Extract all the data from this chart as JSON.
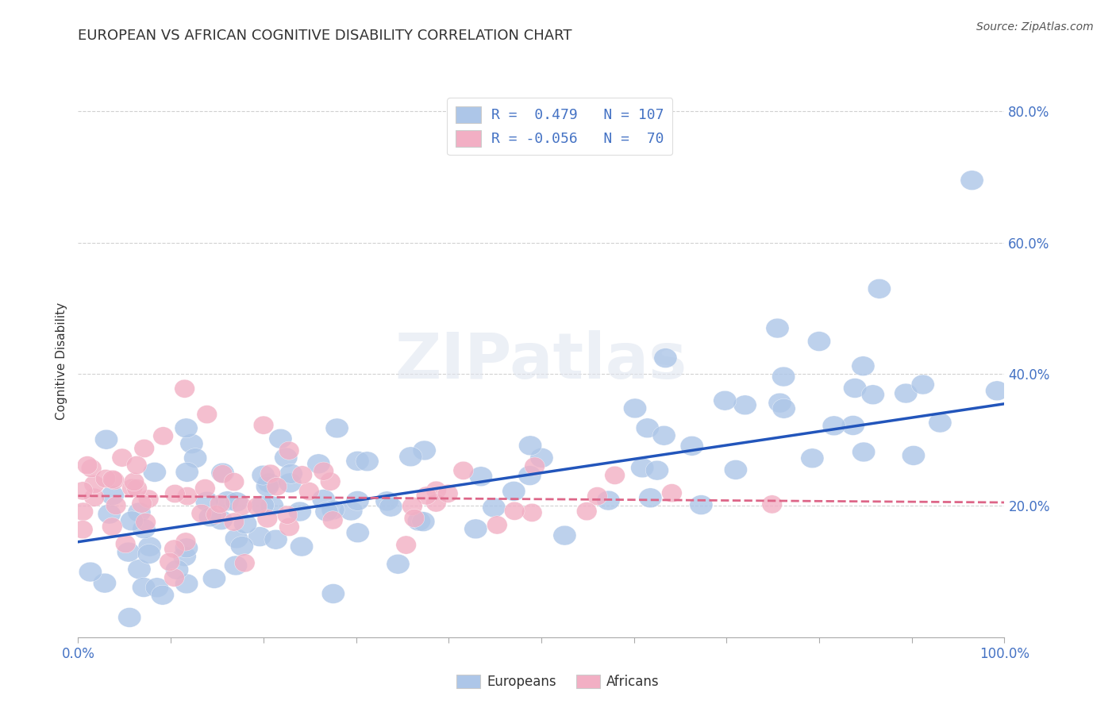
{
  "title": "EUROPEAN VS AFRICAN COGNITIVE DISABILITY CORRELATION CHART",
  "source": "Source: ZipAtlas.com",
  "ylabel": "Cognitive Disability",
  "xlim": [
    0.0,
    1.0
  ],
  "ylim": [
    0.0,
    0.84
  ],
  "yticks": [
    0.2,
    0.4,
    0.6,
    0.8
  ],
  "ytick_labels": [
    "20.0%",
    "40.0%",
    "60.0%",
    "80.0%"
  ],
  "xtick_labels": [
    "0.0%",
    "",
    "",
    "",
    "",
    "",
    "",
    "",
    "",
    "",
    "100.0%"
  ],
  "european_color": "#adc6e8",
  "african_color": "#f2afc4",
  "european_line_color": "#2255bb",
  "african_line_color": "#dd6688",
  "R_european": 0.479,
  "N_european": 107,
  "R_african": -0.056,
  "N_african": 70,
  "watermark": "ZIPatlas",
  "background_color": "#ffffff",
  "grid_color": "#cccccc",
  "eu_line_start_y": 0.145,
  "eu_line_end_y": 0.355,
  "af_line_start_y": 0.215,
  "af_line_end_y": 0.205,
  "tick_color": "#4472c4",
  "title_fontsize": 13,
  "ylabel_fontsize": 11,
  "source_fontsize": 10
}
